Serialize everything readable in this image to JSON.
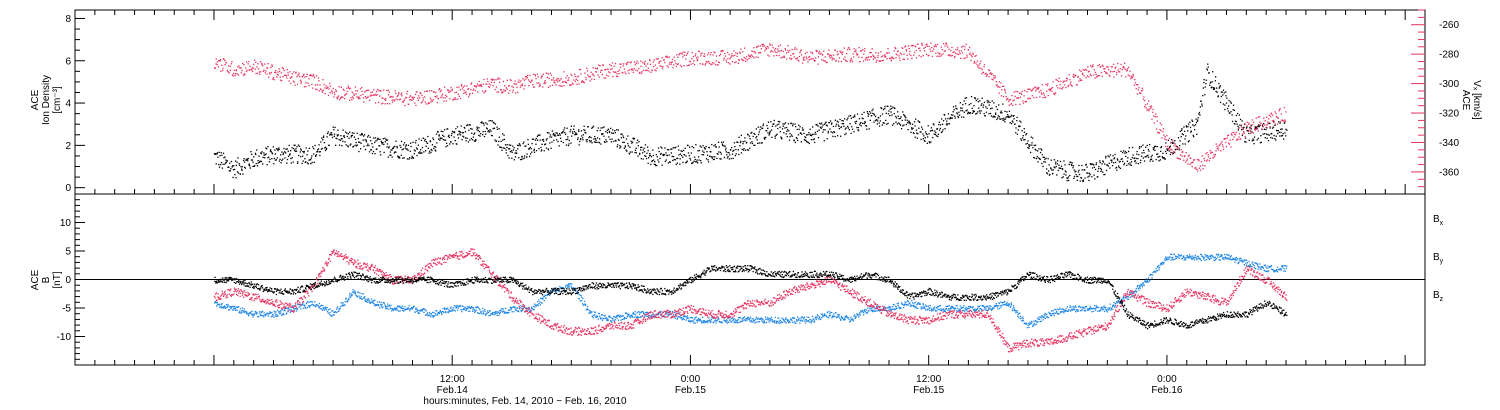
{
  "chart_data": [
    {
      "type": "scatter",
      "panel": "top",
      "title": "",
      "ylabel": [
        "ACE",
        "Ion Density",
        "[cm⁻³]"
      ],
      "ylim": [
        -0.3,
        8.4
      ],
      "yticks": [
        0,
        2,
        4,
        6,
        8
      ],
      "series": [
        {
          "axis": "left",
          "color": "#000000",
          "x": [
            0,
            1,
            2,
            3,
            4,
            5,
            6,
            8,
            10,
            12,
            14,
            15,
            16,
            18,
            20,
            22,
            24,
            26,
            28,
            30,
            32,
            34,
            36,
            38,
            40,
            41,
            42,
            43,
            44,
            46,
            48,
            49.5,
            50,
            52,
            54
          ],
          "y": [
            1.5,
            0.9,
            1.4,
            1.6,
            1.6,
            1.6,
            2.5,
            2.0,
            1.8,
            2.5,
            2.8,
            1.6,
            2.0,
            2.5,
            2.5,
            1.5,
            1.6,
            1.8,
            2.8,
            2.5,
            3.0,
            3.5,
            2.5,
            4.0,
            3.5,
            2.2,
            1.0,
            0.8,
            0.7,
            1.5,
            1.8,
            3.0,
            5.5,
            2.5,
            2.8
          ]
        },
        {
          "axis": "right",
          "color": "#e8325f",
          "x": [
            0,
            1,
            2,
            3,
            4,
            5,
            6,
            8,
            10,
            12,
            14,
            15,
            16,
            18,
            20,
            22,
            24,
            26,
            28,
            30,
            32,
            34,
            36,
            38,
            40,
            41,
            42,
            43,
            44,
            46,
            48,
            49.5,
            50,
            52,
            54
          ],
          "y": [
            -285,
            -290,
            -288,
            -292,
            -296,
            -298,
            -305,
            -308,
            -310,
            -306,
            -300,
            -302,
            -298,
            -296,
            -290,
            -288,
            -282,
            -282,
            -276,
            -282,
            -280,
            -280,
            -276,
            -278,
            -310,
            -308,
            -304,
            -298,
            -292,
            -290,
            -340,
            -356,
            -350,
            -330,
            -320
          ]
        }
      ],
      "y2label": [
        "ACE",
        "Vₓ [km/s]"
      ],
      "y2lim": [
        -375,
        -250
      ],
      "y2ticks": [
        -260,
        -280,
        -300,
        -320,
        -340,
        -360
      ]
    },
    {
      "type": "scatter",
      "panel": "bottom",
      "title": "",
      "ylabel": [
        "ACE",
        "B",
        "[nT]"
      ],
      "ylim": [
        -15,
        15
      ],
      "yticks": [
        -10,
        -5,
        0,
        5,
        10
      ],
      "legend_position": "right",
      "series": [
        {
          "name": "Bx",
          "color": "#000000",
          "x": [
            0,
            1,
            2,
            3,
            4,
            5,
            6,
            7,
            8,
            9,
            10,
            11,
            12,
            13,
            14,
            15,
            16,
            17,
            18,
            19,
            20,
            21,
            22,
            23,
            24,
            25,
            26,
            27,
            28,
            29,
            30,
            31,
            32,
            33,
            34,
            35,
            36,
            37,
            38,
            39,
            40,
            41,
            42,
            43,
            44,
            45,
            46,
            47,
            48,
            49,
            50,
            51,
            52,
            53,
            54
          ],
          "y": [
            0,
            0,
            -1,
            -2,
            -2,
            -1,
            0,
            1,
            0,
            0,
            0,
            0,
            -1,
            0,
            0,
            0,
            -2,
            -2,
            -2,
            -1,
            -1,
            -1,
            -2,
            -2,
            0,
            2,
            2,
            2,
            1,
            1,
            1,
            1,
            0,
            1,
            0,
            -3,
            -2,
            -3,
            -3,
            -3,
            -2,
            1,
            0,
            1,
            0,
            0,
            -6,
            -8,
            -7,
            -8,
            -7,
            -6,
            -6,
            -4,
            -6
          ]
        },
        {
          "name": "By",
          "color": "#1e86e6",
          "x": [
            0,
            1,
            2,
            3,
            4,
            5,
            6,
            7,
            8,
            9,
            10,
            11,
            12,
            13,
            14,
            15,
            16,
            17,
            18,
            19,
            20,
            21,
            22,
            23,
            24,
            25,
            26,
            27,
            28,
            29,
            30,
            31,
            32,
            33,
            34,
            35,
            36,
            37,
            38,
            39,
            40,
            41,
            42,
            43,
            44,
            45,
            46,
            47,
            48,
            49,
            50,
            51,
            52,
            53,
            54
          ],
          "y": [
            -4,
            -5,
            -6,
            -6,
            -5,
            -4,
            -6,
            -2,
            -4,
            -5,
            -5,
            -6,
            -5,
            -5,
            -6,
            -5,
            -5,
            -2,
            -1,
            -6,
            -7,
            -6,
            -6,
            -6,
            -7,
            -7,
            -7,
            -7,
            -7,
            -7,
            -7,
            -6,
            -7,
            -5,
            -5,
            -4,
            -5,
            -5,
            -5,
            -5,
            -4,
            -8,
            -6,
            -5,
            -5,
            -5,
            -3,
            0,
            4,
            4,
            4,
            4,
            3,
            2,
            2
          ]
        },
        {
          "name": "Bz",
          "color": "#e8325f",
          "x": [
            0,
            1,
            2,
            3,
            4,
            5,
            6,
            7,
            8,
            9,
            10,
            11,
            12,
            13,
            14,
            15,
            16,
            17,
            18,
            19,
            20,
            21,
            22,
            23,
            24,
            25,
            26,
            27,
            28,
            29,
            30,
            31,
            32,
            33,
            34,
            35,
            36,
            37,
            38,
            39,
            40,
            41,
            42,
            43,
            44,
            45,
            46,
            47,
            48,
            49,
            50,
            51,
            52,
            53,
            54
          ],
          "y": [
            -3,
            -2,
            -3,
            -4,
            -5,
            -1,
            5,
            3,
            2,
            0,
            0,
            3,
            4,
            5,
            1,
            -3,
            -6,
            -8,
            -9,
            -9,
            -8,
            -8,
            -6,
            -6,
            -5,
            -6,
            -6,
            -4,
            -4,
            -2,
            -1,
            0,
            -2,
            -4,
            -6,
            -7,
            -7,
            -6,
            -6,
            -6,
            -12,
            -11,
            -11,
            -10,
            -9,
            -8,
            -2,
            -4,
            -5,
            -2,
            -3,
            -4,
            2,
            0,
            -3
          ]
        }
      ],
      "hline": 0,
      "legend_labels": [
        "B",
        "B",
        "B"
      ],
      "legend_subscripts": [
        "x",
        "y",
        "z"
      ]
    }
  ],
  "x_axis": {
    "title": "hours:minutes, Feb. 14, 2010 − Feb. 16, 2010",
    "ticks": [
      {
        "hour": 12,
        "time": "12:00",
        "date": "Feb.14"
      },
      {
        "hour": 24,
        "time": "0:00",
        "date": "Feb.15"
      },
      {
        "hour": 36,
        "time": "12:00",
        "date": "Feb.15"
      },
      {
        "hour": 48,
        "time": "0:00",
        "date": "Feb.16"
      }
    ],
    "range_hours": [
      -7,
      61
    ]
  },
  "colors": {
    "black": "#000000",
    "pink": "#e8325f",
    "blue": "#1e86e6"
  }
}
